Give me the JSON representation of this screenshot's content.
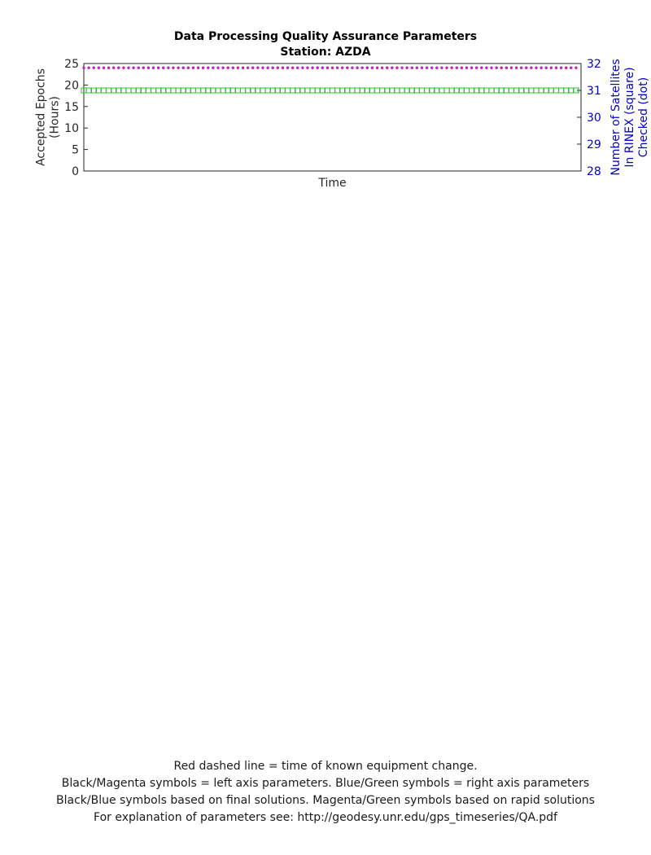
{
  "header": {
    "title": "Data Processing Quality Assurance Parameters",
    "station": "Station: AZDA"
  },
  "footer": {
    "line1": "Red dashed line = time of known equipment change.",
    "line2": "Black/Magenta symbols = left axis parameters. Blue/Green symbols = right axis parameters",
    "line3": "Black/Blue symbols based on final solutions.  Magenta/Green symbols based on rapid solutions",
    "line4": "For explanation of parameters see: http://geodesy.unr.edu/gps_timeseries/QA.pdf"
  },
  "colors": {
    "final_left": "#000000",
    "final_right": "#0000ee",
    "rapid_left": "#cc22cc",
    "rapid_right": "#22cc22",
    "right_axis": "#0000cc"
  },
  "chart_data": [
    {
      "type": "scatter",
      "xlabel": "Time",
      "ylabel": "Accepted Epochs (Hours)",
      "ylabel_lines": [
        "Accepted Epochs",
        "(Hours)"
      ],
      "ylim": [
        0,
        25
      ],
      "yticks": [
        0,
        5,
        10,
        15,
        20,
        25
      ],
      "y2label_lines": [
        "Number of Satellites",
        "In RINEX (square)",
        "Checked (dot)"
      ],
      "y2lim": [
        28,
        32
      ],
      "y2ticks": [
        28,
        29,
        30,
        31,
        32
      ],
      "x_range": [
        0,
        200
      ],
      "grid": false,
      "series": [
        {
          "role": "final_left",
          "marker": "dot",
          "x": [
            0,
            2,
            4,
            6,
            8,
            10,
            12,
            14,
            16,
            18,
            20,
            22,
            24,
            26,
            28,
            30,
            32,
            34,
            36,
            38,
            40,
            42,
            44,
            46,
            48,
            50,
            52,
            54,
            56,
            58,
            60,
            62,
            64,
            66,
            68,
            70,
            72,
            74,
            76,
            78,
            80,
            82,
            84,
            86,
            88,
            90,
            92,
            94,
            96,
            98,
            100,
            102,
            104,
            106,
            108,
            110,
            112,
            114,
            116,
            118,
            120,
            122,
            124,
            126,
            128,
            130,
            132,
            134,
            136,
            138,
            140,
            142,
            144,
            146,
            148,
            150,
            152,
            154,
            156,
            158,
            160,
            162,
            164,
            166,
            168,
            170,
            172,
            174,
            176,
            178,
            180,
            182,
            184,
            186,
            188,
            190,
            192,
            194,
            196,
            198
          ],
          "y": [
            24,
            24,
            24,
            24,
            24,
            24,
            24,
            24,
            24,
            24,
            24,
            24,
            24,
            24,
            24,
            24,
            24,
            24,
            24,
            24,
            24,
            24,
            24,
            24,
            24,
            24,
            24,
            24,
            24,
            24,
            24,
            24,
            24,
            24,
            24,
            24,
            24,
            24,
            24,
            24,
            24,
            24,
            24,
            24,
            24,
            24,
            24,
            24,
            24,
            24,
            24,
            24,
            24,
            24,
            24,
            24,
            24,
            24,
            24,
            24,
            24,
            24,
            24,
            24,
            24,
            24,
            24,
            24,
            24,
            24,
            24,
            24,
            24,
            24,
            24,
            24,
            24,
            24,
            24,
            24,
            24,
            24,
            24,
            24,
            24,
            24,
            24,
            24,
            24,
            24,
            24,
            24,
            24,
            24,
            24,
            24,
            24,
            24,
            24,
            24
          ]
        },
        {
          "role": "rapid_left",
          "marker": "dot",
          "x": [
            0,
            2,
            4,
            6,
            8,
            10,
            12,
            14,
            16,
            18,
            20,
            22,
            24,
            26,
            28,
            30,
            32,
            34,
            36,
            38,
            40,
            42,
            44,
            46,
            48,
            50,
            52,
            54,
            56,
            58,
            60,
            62,
            64,
            66,
            68,
            70,
            72,
            74,
            76,
            78,
            80,
            82,
            84,
            86,
            88,
            90,
            92,
            94,
            96,
            98,
            100,
            102,
            104,
            106,
            108,
            110,
            112,
            114,
            116,
            118,
            120,
            122,
            124,
            126,
            128,
            130,
            132,
            134,
            136,
            138,
            140,
            142,
            144,
            146,
            148,
            150,
            152,
            154,
            156,
            158,
            160,
            162,
            164,
            166,
            168,
            170,
            172,
            174,
            176,
            178,
            180,
            182,
            184,
            186,
            188,
            190,
            192,
            194,
            196,
            198
          ],
          "y": [
            24,
            24,
            24,
            24,
            24,
            24,
            24,
            24,
            24,
            24,
            24,
            24,
            24,
            24,
            24,
            24,
            24,
            24,
            24,
            24,
            24,
            24,
            24,
            24,
            24,
            24,
            24,
            24,
            24,
            24,
            24,
            24,
            24,
            24,
            24,
            24,
            24,
            24,
            24,
            24,
            24,
            24,
            24,
            24,
            24,
            24,
            24,
            24,
            24,
            24,
            24,
            24,
            24,
            24,
            24,
            24,
            24,
            24,
            24,
            24,
            24,
            24,
            24,
            24,
            24,
            24,
            24,
            24,
            24,
            24,
            24,
            24,
            24,
            24,
            24,
            24,
            24,
            24,
            24,
            24,
            24,
            24,
            24,
            24,
            24,
            24,
            24,
            24,
            24,
            24,
            24,
            24,
            24,
            24,
            24,
            24,
            24,
            24,
            24,
            24
          ]
        },
        {
          "role": "final_right",
          "marker": "square",
          "x": [
            0,
            2,
            4,
            6,
            8,
            10,
            12,
            14,
            16,
            18,
            20,
            22,
            24,
            26,
            28,
            30,
            32,
            34,
            36,
            38,
            40,
            42,
            44,
            46,
            48,
            50,
            52,
            54,
            56,
            58,
            60,
            62,
            64,
            66,
            68,
            70,
            72,
            74,
            76,
            78,
            80,
            82,
            84,
            86,
            88,
            90,
            92,
            94,
            96,
            98,
            100,
            102,
            104,
            106,
            108,
            110,
            112,
            114,
            116,
            118,
            120,
            122,
            124,
            126,
            128,
            130,
            132,
            134,
            136,
            138,
            140,
            142,
            144,
            146,
            148,
            150,
            152,
            154,
            156,
            158,
            160,
            162,
            164,
            166,
            168,
            170,
            172,
            174,
            176,
            178,
            180,
            182,
            184,
            186,
            188,
            190,
            192,
            194,
            196,
            198
          ],
          "y": [
            31,
            31,
            31,
            31,
            31,
            31,
            31,
            31,
            31,
            31,
            31,
            31,
            31,
            31,
            31,
            31,
            31,
            31,
            31,
            31,
            31,
            31,
            31,
            31,
            31,
            31,
            31,
            31,
            31,
            31,
            31,
            31,
            31,
            31,
            31,
            31,
            31,
            31,
            31,
            31,
            31,
            31,
            31,
            31,
            31,
            31,
            31,
            31,
            31,
            31,
            31,
            31,
            31,
            31,
            31,
            31,
            31,
            31,
            31,
            31,
            31,
            31,
            31,
            31,
            31,
            31,
            31,
            31,
            31,
            31,
            31,
            31,
            31,
            31,
            31,
            31,
            31,
            31,
            31,
            31,
            31,
            31,
            31,
            31,
            31,
            31,
            31,
            31,
            31,
            31,
            31,
            31,
            31,
            31,
            31,
            31,
            31,
            31,
            31,
            31
          ]
        },
        {
          "role": "rapid_right",
          "marker": "square",
          "x": [
            0,
            2,
            4,
            6,
            8,
            10,
            12,
            14,
            16,
            18,
            20,
            22,
            24,
            26,
            28,
            30,
            32,
            34,
            36,
            38,
            40,
            42,
            44,
            46,
            48,
            50,
            52,
            54,
            56,
            58,
            60,
            62,
            64,
            66,
            68,
            70,
            72,
            74,
            76,
            78,
            80,
            82,
            84,
            86,
            88,
            90,
            92,
            94,
            96,
            98,
            100,
            102,
            104,
            106,
            108,
            110,
            112,
            114,
            116,
            118,
            120,
            122,
            124,
            126,
            128,
            130,
            132,
            134,
            136,
            138,
            140,
            142,
            144,
            146,
            148,
            150,
            152,
            154,
            156,
            158,
            160,
            162,
            164,
            166,
            168,
            170,
            172,
            174,
            176,
            178,
            180,
            182,
            184,
            186,
            188,
            190,
            192,
            194,
            196,
            198
          ],
          "y": [
            31,
            31,
            31,
            31,
            31,
            31,
            31,
            31,
            31,
            31,
            31,
            31,
            31,
            31,
            31,
            31,
            31,
            31,
            31,
            31,
            31,
            31,
            31,
            31,
            31,
            31,
            31,
            31,
            31,
            31,
            31,
            31,
            31,
            31,
            31,
            31,
            31,
            31,
            31,
            31,
            31,
            31,
            31,
            31,
            31,
            31,
            31,
            31,
            31,
            31,
            31,
            31,
            31,
            31,
            31,
            31,
            31,
            31,
            31,
            31,
            31,
            31,
            31,
            31,
            31,
            31,
            31,
            31,
            31,
            31,
            31,
            31,
            31,
            31,
            31,
            31,
            31,
            31,
            31,
            31,
            31,
            31,
            31,
            31,
            31,
            31,
            31,
            31,
            31,
            31,
            31,
            31,
            31,
            31,
            31,
            31,
            31,
            31,
            31,
            31
          ]
        }
      ]
    }
  ]
}
